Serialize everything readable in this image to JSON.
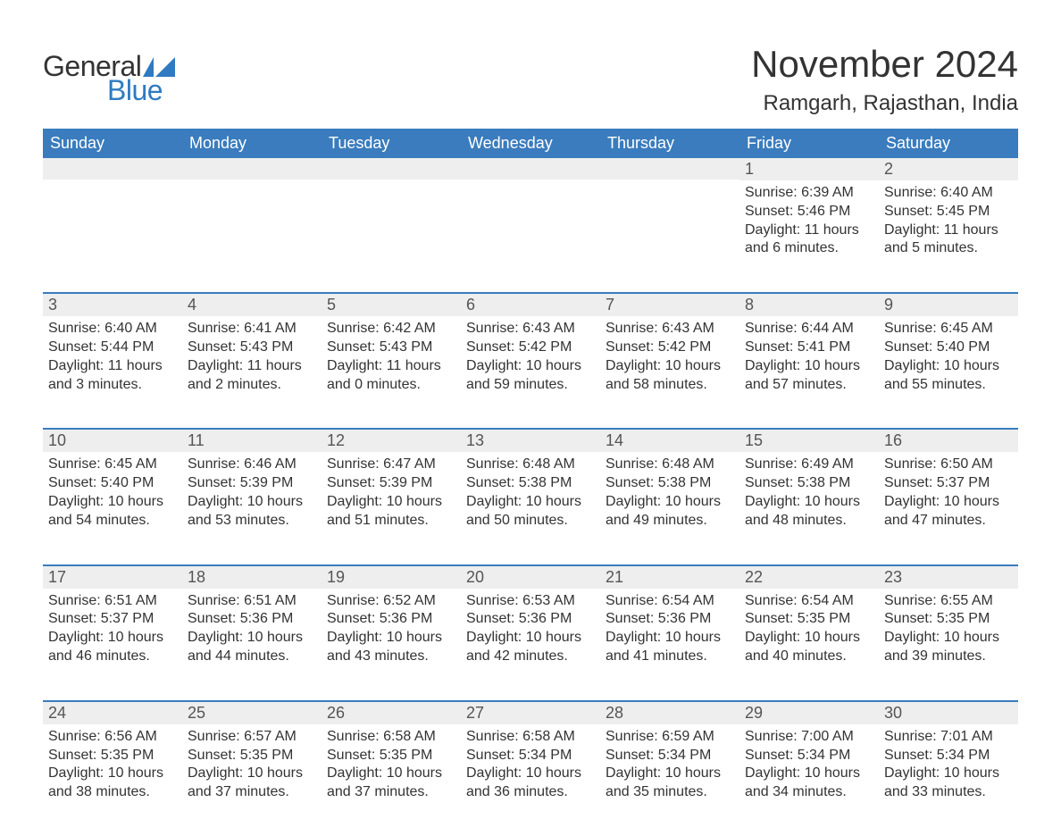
{
  "logo": {
    "general": "General",
    "blue": "Blue"
  },
  "title": "November 2024",
  "location": "Ramgarh, Rajasthan, India",
  "colors": {
    "header_bg": "#3a7cbd",
    "header_text": "#ffffff",
    "daynum_bg": "#eeeeee",
    "row_border": "#3a7cbd",
    "text": "#333333",
    "logo_blue": "#2f7ac0"
  },
  "weekdays": [
    "Sunday",
    "Monday",
    "Tuesday",
    "Wednesday",
    "Thursday",
    "Friday",
    "Saturday"
  ],
  "weeks": [
    [
      null,
      null,
      null,
      null,
      null,
      {
        "day": 1,
        "sunrise": "6:39 AM",
        "sunset": "5:46 PM",
        "daylight": "11 hours and 6 minutes."
      },
      {
        "day": 2,
        "sunrise": "6:40 AM",
        "sunset": "5:45 PM",
        "daylight": "11 hours and 5 minutes."
      }
    ],
    [
      {
        "day": 3,
        "sunrise": "6:40 AM",
        "sunset": "5:44 PM",
        "daylight": "11 hours and 3 minutes."
      },
      {
        "day": 4,
        "sunrise": "6:41 AM",
        "sunset": "5:43 PM",
        "daylight": "11 hours and 2 minutes."
      },
      {
        "day": 5,
        "sunrise": "6:42 AM",
        "sunset": "5:43 PM",
        "daylight": "11 hours and 0 minutes."
      },
      {
        "day": 6,
        "sunrise": "6:43 AM",
        "sunset": "5:42 PM",
        "daylight": "10 hours and 59 minutes."
      },
      {
        "day": 7,
        "sunrise": "6:43 AM",
        "sunset": "5:42 PM",
        "daylight": "10 hours and 58 minutes."
      },
      {
        "day": 8,
        "sunrise": "6:44 AM",
        "sunset": "5:41 PM",
        "daylight": "10 hours and 57 minutes."
      },
      {
        "day": 9,
        "sunrise": "6:45 AM",
        "sunset": "5:40 PM",
        "daylight": "10 hours and 55 minutes."
      }
    ],
    [
      {
        "day": 10,
        "sunrise": "6:45 AM",
        "sunset": "5:40 PM",
        "daylight": "10 hours and 54 minutes."
      },
      {
        "day": 11,
        "sunrise": "6:46 AM",
        "sunset": "5:39 PM",
        "daylight": "10 hours and 53 minutes."
      },
      {
        "day": 12,
        "sunrise": "6:47 AM",
        "sunset": "5:39 PM",
        "daylight": "10 hours and 51 minutes."
      },
      {
        "day": 13,
        "sunrise": "6:48 AM",
        "sunset": "5:38 PM",
        "daylight": "10 hours and 50 minutes."
      },
      {
        "day": 14,
        "sunrise": "6:48 AM",
        "sunset": "5:38 PM",
        "daylight": "10 hours and 49 minutes."
      },
      {
        "day": 15,
        "sunrise": "6:49 AM",
        "sunset": "5:38 PM",
        "daylight": "10 hours and 48 minutes."
      },
      {
        "day": 16,
        "sunrise": "6:50 AM",
        "sunset": "5:37 PM",
        "daylight": "10 hours and 47 minutes."
      }
    ],
    [
      {
        "day": 17,
        "sunrise": "6:51 AM",
        "sunset": "5:37 PM",
        "daylight": "10 hours and 46 minutes."
      },
      {
        "day": 18,
        "sunrise": "6:51 AM",
        "sunset": "5:36 PM",
        "daylight": "10 hours and 44 minutes."
      },
      {
        "day": 19,
        "sunrise": "6:52 AM",
        "sunset": "5:36 PM",
        "daylight": "10 hours and 43 minutes."
      },
      {
        "day": 20,
        "sunrise": "6:53 AM",
        "sunset": "5:36 PM",
        "daylight": "10 hours and 42 minutes."
      },
      {
        "day": 21,
        "sunrise": "6:54 AM",
        "sunset": "5:36 PM",
        "daylight": "10 hours and 41 minutes."
      },
      {
        "day": 22,
        "sunrise": "6:54 AM",
        "sunset": "5:35 PM",
        "daylight": "10 hours and 40 minutes."
      },
      {
        "day": 23,
        "sunrise": "6:55 AM",
        "sunset": "5:35 PM",
        "daylight": "10 hours and 39 minutes."
      }
    ],
    [
      {
        "day": 24,
        "sunrise": "6:56 AM",
        "sunset": "5:35 PM",
        "daylight": "10 hours and 38 minutes."
      },
      {
        "day": 25,
        "sunrise": "6:57 AM",
        "sunset": "5:35 PM",
        "daylight": "10 hours and 37 minutes."
      },
      {
        "day": 26,
        "sunrise": "6:58 AM",
        "sunset": "5:35 PM",
        "daylight": "10 hours and 37 minutes."
      },
      {
        "day": 27,
        "sunrise": "6:58 AM",
        "sunset": "5:34 PM",
        "daylight": "10 hours and 36 minutes."
      },
      {
        "day": 28,
        "sunrise": "6:59 AM",
        "sunset": "5:34 PM",
        "daylight": "10 hours and 35 minutes."
      },
      {
        "day": 29,
        "sunrise": "7:00 AM",
        "sunset": "5:34 PM",
        "daylight": "10 hours and 34 minutes."
      },
      {
        "day": 30,
        "sunrise": "7:01 AM",
        "sunset": "5:34 PM",
        "daylight": "10 hours and 33 minutes."
      }
    ]
  ],
  "labels": {
    "sunrise": "Sunrise: ",
    "sunset": "Sunset: ",
    "daylight": "Daylight: "
  }
}
